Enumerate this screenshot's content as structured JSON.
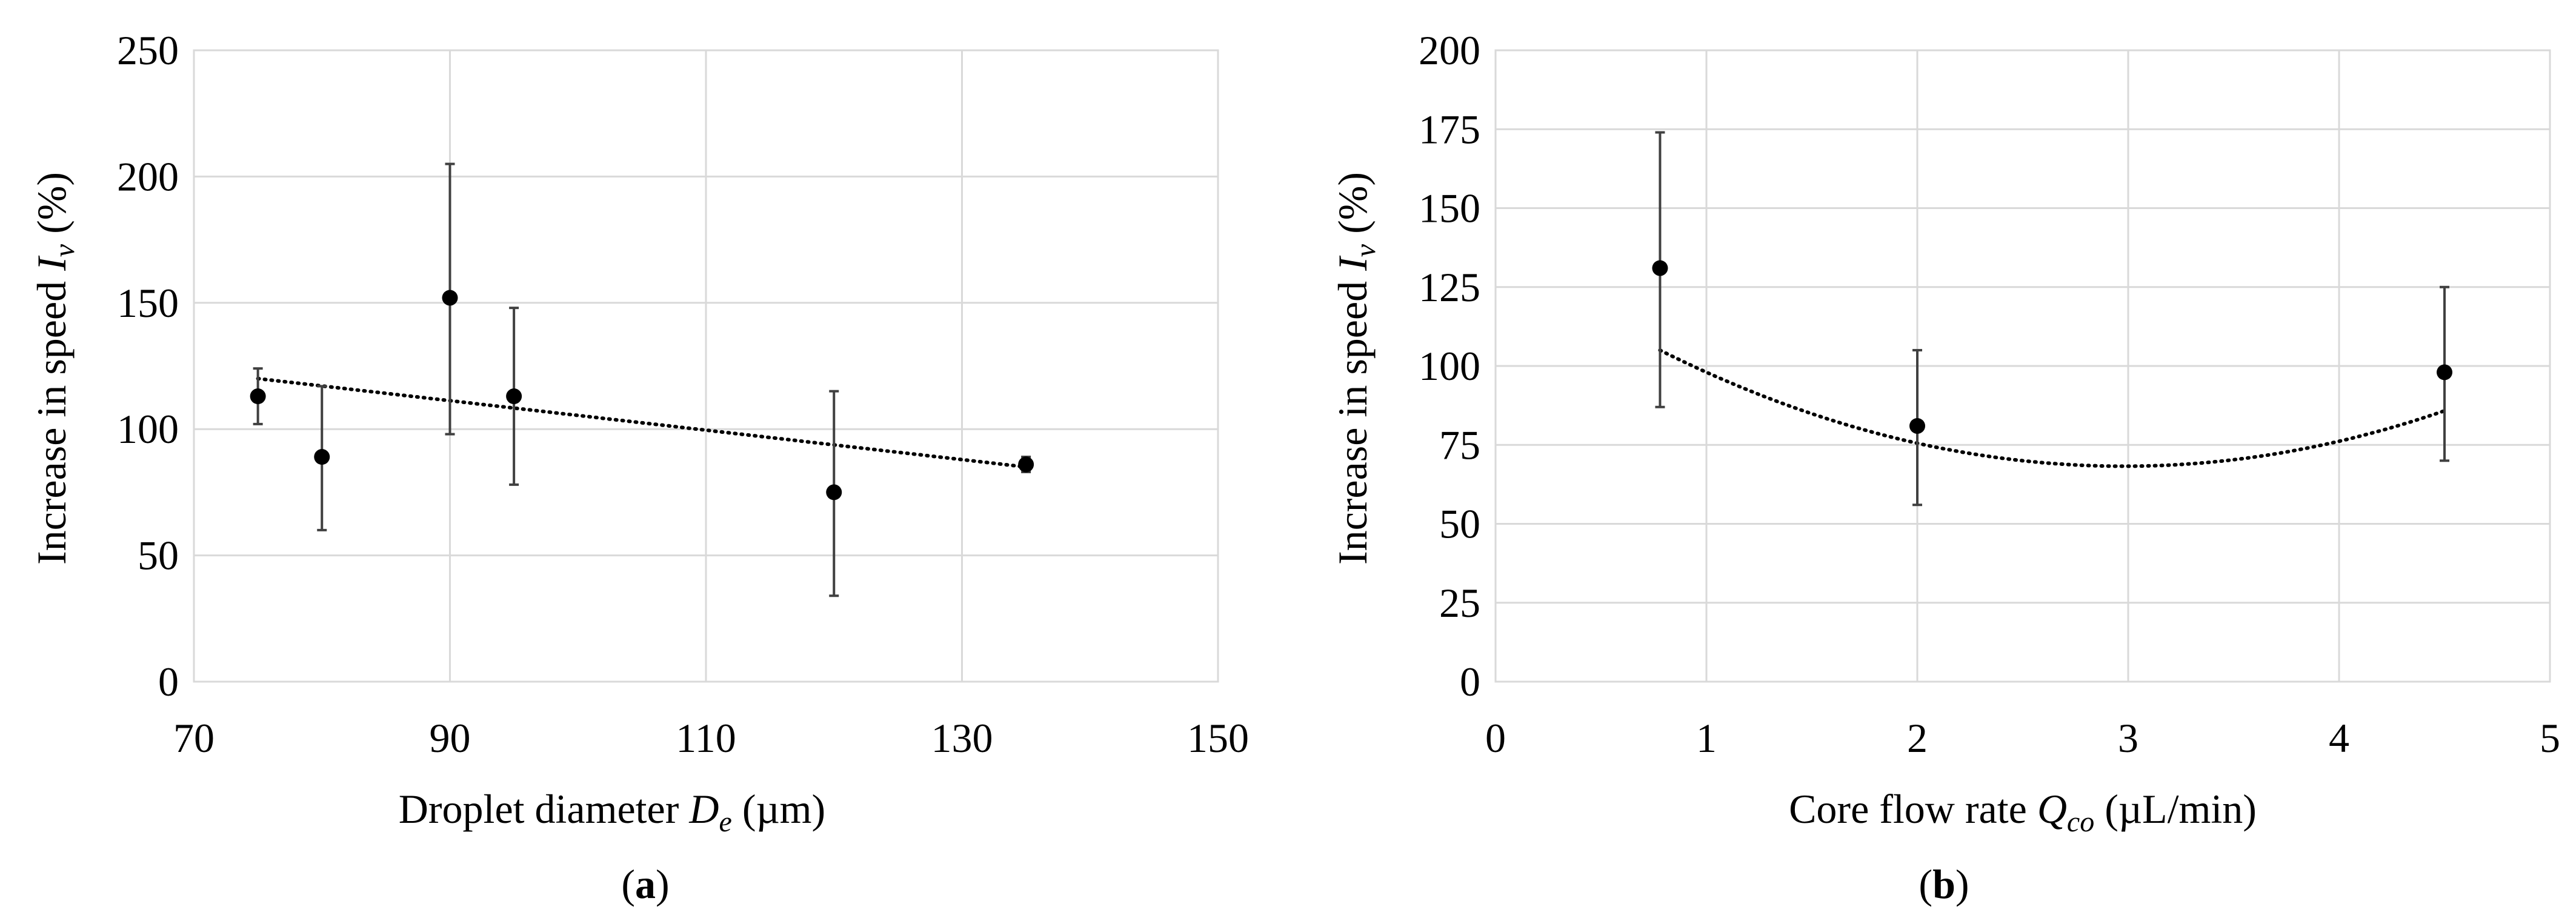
{
  "chart_data": [
    {
      "type": "scatter",
      "panel_label": "a",
      "xlabel": {
        "prefix": "Droplet diameter ",
        "symbol": "D",
        "sub": "e",
        "suffix": " (µm)"
      },
      "ylabel": {
        "prefix": "Increase in speed ",
        "symbol": "I",
        "sub": "v",
        "suffix": " (%)"
      },
      "xlim": [
        70,
        150
      ],
      "ylim": [
        0,
        250
      ],
      "xticks": [
        70,
        90,
        110,
        130,
        150
      ],
      "yticks": [
        0,
        50,
        100,
        150,
        200,
        250
      ],
      "grid": true,
      "points": [
        {
          "x": 75,
          "y": 113,
          "err_low": 102,
          "err_high": 124
        },
        {
          "x": 80,
          "y": 89,
          "err_low": 60,
          "err_high": 117
        },
        {
          "x": 90,
          "y": 152,
          "err_low": 98,
          "err_high": 205
        },
        {
          "x": 95,
          "y": 113,
          "err_low": 78,
          "err_high": 148
        },
        {
          "x": 120,
          "y": 75,
          "err_low": 34,
          "err_high": 115
        },
        {
          "x": 135,
          "y": 86,
          "err_low": 83,
          "err_high": 89
        }
      ],
      "trendline": {
        "type": "linear",
        "x_range": [
          75,
          135
        ],
        "coefficients": [
          -0.5833,
          163.75
        ]
      }
    },
    {
      "type": "scatter",
      "panel_label": "b",
      "xlabel": {
        "prefix": "Core flow rate ",
        "symbol": "Q",
        "sub": "co",
        "suffix": " (µL/min)"
      },
      "ylabel": {
        "prefix": "Increase in speed ",
        "symbol": "I",
        "sub": "v",
        "suffix": " (%)"
      },
      "xlim": [
        0,
        5
      ],
      "ylim": [
        0,
        200
      ],
      "xticks": [
        0,
        1,
        2,
        3,
        4,
        5
      ],
      "yticks": [
        0,
        25,
        50,
        75,
        100,
        125,
        150,
        175,
        200
      ],
      "grid": true,
      "points": [
        {
          "x": 0.78,
          "y": 131,
          "err_low": 87,
          "err_high": 174
        },
        {
          "x": 2,
          "y": 81,
          "err_low": 56,
          "err_high": 105
        },
        {
          "x": 4.5,
          "y": 98,
          "err_low": 70,
          "err_high": 125
        }
      ],
      "trendline": {
        "type": "polynomial",
        "x_range": [
          0.78,
          4.5
        ],
        "coefficients": [
          7.5965,
          -45.2683,
          135.6836
        ]
      }
    }
  ]
}
